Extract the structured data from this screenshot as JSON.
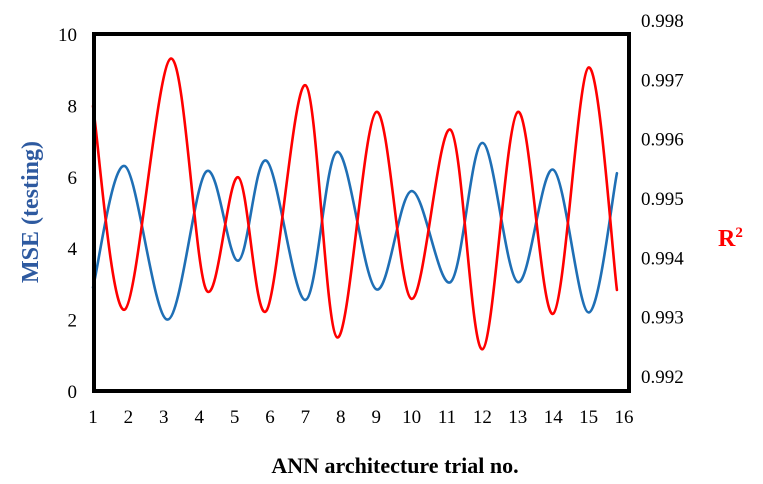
{
  "chart_data": {
    "type": "line",
    "xlabel": "ANN architecture trial no.",
    "ylabel_left": "MSE (testing)",
    "ylabel_right_base": "R",
    "ylabel_right_sup": "2",
    "x_ticks": [
      "1",
      "2",
      "3",
      "4",
      "5",
      "6",
      "7",
      "8",
      "9",
      "10",
      "11",
      "12",
      "13",
      "14",
      "15",
      "16"
    ],
    "y_left_ticks": [
      "0",
      "2",
      "4",
      "6",
      "8",
      "10"
    ],
    "y_right_ticks": [
      "0.992",
      "0.993",
      "0.994",
      "0.995",
      "0.996",
      "0.997",
      "0.998"
    ],
    "xlim": [
      1,
      16
    ],
    "ylim_left": [
      0,
      10
    ],
    "ylim_right": [
      0.992,
      0.998
    ],
    "grid": false,
    "smooth": true,
    "series": [
      {
        "axis": "left",
        "color": "#1f6fb5",
        "x": [
          1,
          1.9,
          3.1,
          4.2,
          5.1,
          5.9,
          7,
          7.9,
          9,
          10,
          11.1,
          12,
          13,
          14,
          15,
          15.8
        ],
        "values": [
          2.9,
          6.3,
          2.0,
          6.15,
          3.65,
          6.45,
          2.55,
          6.7,
          2.85,
          5.6,
          3.05,
          6.95,
          3.05,
          6.2,
          2.2,
          6.1
        ]
      },
      {
        "axis": "right",
        "color": "#ff0000",
        "x": [
          1,
          1.9,
          3.2,
          4.2,
          5.1,
          5.9,
          7,
          7.9,
          9,
          10,
          11.1,
          12,
          13,
          14,
          15,
          15.8
        ],
        "values": [
          0.99655,
          0.99312,
          0.99735,
          0.99345,
          0.99535,
          0.9931,
          0.9969,
          0.99265,
          0.99645,
          0.9933,
          0.99615,
          0.99245,
          0.99645,
          0.99305,
          0.9972,
          0.99345
        ]
      }
    ]
  }
}
